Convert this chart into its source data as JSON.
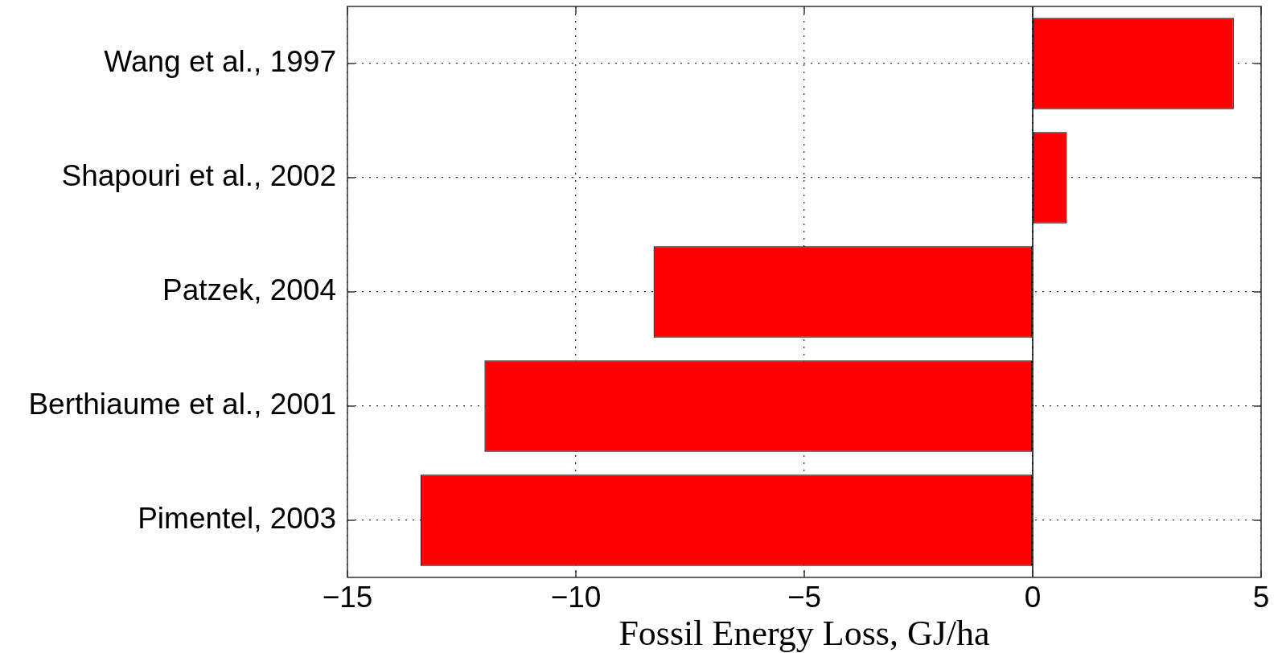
{
  "chart_data": {
    "type": "bar",
    "orientation": "horizontal",
    "categories": [
      "Wang et al., 1997",
      "Shapouri et al., 2002",
      "Patzek, 2004",
      "Berthiaume et al., 2001",
      "Pimentel, 2003"
    ],
    "values": [
      4.4,
      0.75,
      -8.3,
      -12.0,
      -13.4
    ],
    "color": "#ff0000",
    "xlabel": "Fossil Energy Loss, GJ/ha",
    "xlim": [
      -15,
      5
    ],
    "xticks": [
      -15,
      -10,
      -5,
      0,
      5
    ],
    "grid": true
  }
}
